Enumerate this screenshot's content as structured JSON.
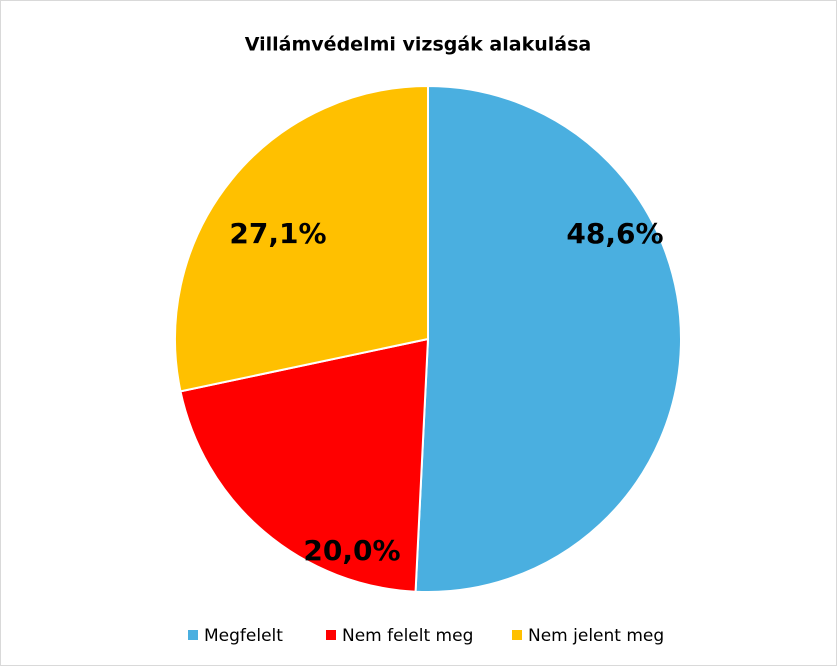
{
  "chart_data": {
    "type": "pie",
    "title": "Villámvédelmi vizsgák alakulása",
    "categories": [
      "Megfelelt",
      "Nem felelt meg",
      "Nem jelent meg"
    ],
    "values": [
      48.6,
      20.0,
      27.1
    ],
    "value_labels": [
      "48,6%",
      "20,0%",
      "27,1%"
    ],
    "colors": [
      "#4aafe0",
      "#ff0000",
      "#ffc000"
    ],
    "legend": "bottom"
  }
}
